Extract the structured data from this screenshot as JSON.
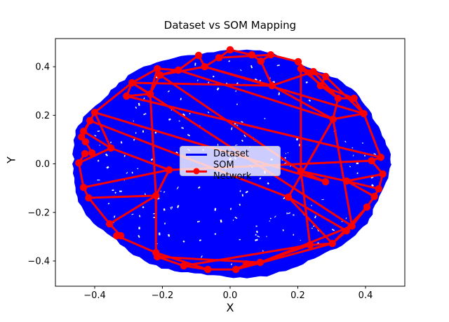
{
  "figure": {
    "background": "#ffffff"
  },
  "chart_data": {
    "type": "scatter",
    "title": "Dataset vs SOM Mapping",
    "xlabel": "X",
    "ylabel": "Y",
    "xlim": [
      -0.516,
      0.516
    ],
    "ylim": [
      -0.504,
      0.516
    ],
    "x_ticks": [
      -0.4,
      -0.2,
      0.0,
      0.2,
      0.4
    ],
    "y_ticks": [
      -0.4,
      -0.2,
      0.0,
      0.2,
      0.4
    ],
    "x_tick_labels": [
      "−0.4",
      "−0.2",
      "0.0",
      "0.2",
      "0.4"
    ],
    "y_tick_labels": [
      "−0.4",
      "−0.2",
      "0.0",
      "0.2",
      "0.4"
    ],
    "grid": false,
    "legend": {
      "position": "center",
      "entries": [
        {
          "label": "Dataset",
          "color": "#0000ff",
          "marker": "line"
        },
        {
          "label": "SOM Network",
          "color": "#ff0000",
          "marker": "line+circle"
        }
      ]
    },
    "series": [
      {
        "name": "Dataset",
        "kind": "dense_point_cloud",
        "color": "#0000ff",
        "shape": "disk",
        "center": [
          0.0,
          0.0
        ],
        "radius": 0.47,
        "description": "Thousands of random 2-D points uniformly filling a disk of radius ~0.47, drawn so densely they form a solid blue blob with tiny white gaps"
      },
      {
        "name": "SOM Network",
        "kind": "network",
        "color": "#ff0000",
        "marker": "circle",
        "nodes": [
          [
            0.0,
            0.47
          ],
          [
            0.064,
            0.449
          ],
          [
            0.12,
            0.449
          ],
          [
            0.091,
            0.423
          ],
          [
            0.201,
            0.421
          ],
          [
            0.209,
            0.392
          ],
          [
            0.246,
            0.38
          ],
          [
            0.282,
            0.36
          ],
          [
            0.267,
            0.322
          ],
          [
            0.124,
            0.322
          ],
          [
            0.366,
            0.27
          ],
          [
            0.319,
            0.27
          ],
          [
            0.395,
            0.207
          ],
          [
            0.304,
            0.184
          ],
          [
            0.445,
            0.027
          ],
          [
            0.418,
            0.013
          ],
          [
            0.451,
            -0.042
          ],
          [
            0.439,
            -0.103
          ],
          [
            0.426,
            -0.134
          ],
          [
            0.404,
            -0.178
          ],
          [
            0.36,
            -0.256
          ],
          [
            0.344,
            -0.276
          ],
          [
            0.302,
            -0.328
          ],
          [
            0.236,
            -0.334
          ],
          [
            0.089,
            -0.406
          ],
          [
            0.048,
            -0.412
          ],
          [
            0.017,
            -0.435
          ],
          [
            -0.066,
            -0.435
          ],
          [
            -0.137,
            -0.42
          ],
          [
            -0.215,
            -0.383
          ],
          [
            -0.219,
            -0.366
          ],
          [
            -0.335,
            -0.296
          ],
          [
            -0.323,
            -0.296
          ],
          [
            -0.356,
            -0.247
          ],
          [
            -0.418,
            -0.14
          ],
          [
            -0.433,
            -0.097
          ],
          [
            -0.447,
            0.004
          ],
          [
            -0.429,
            0.042
          ],
          [
            -0.408,
            0.045
          ],
          [
            -0.352,
            0.065
          ],
          [
            -0.439,
            0.111
          ],
          [
            -0.427,
            0.091
          ],
          [
            -0.433,
            0.134
          ],
          [
            -0.414,
            0.178
          ],
          [
            -0.4,
            0.212
          ],
          [
            -0.29,
            0.334
          ],
          [
            -0.306,
            0.279
          ],
          [
            -0.236,
            0.288
          ],
          [
            -0.215,
            0.392
          ],
          [
            -0.207,
            0.366
          ],
          [
            -0.153,
            0.386
          ],
          [
            -0.093,
            0.447
          ],
          [
            -0.075,
            0.4
          ],
          [
            -0.033,
            0.437
          ],
          [
            0.209,
            -0.03
          ],
          [
            0.282,
            -0.074
          ],
          [
            0.172,
            -0.137
          ],
          [
            -0.219,
            -0.131
          ],
          [
            -0.18,
            -0.025
          ],
          [
            0.344,
            -0.071
          ]
        ],
        "edges": [
          [
            0,
            1
          ],
          [
            1,
            3
          ],
          [
            3,
            2
          ],
          [
            2,
            4
          ],
          [
            4,
            5
          ],
          [
            5,
            6
          ],
          [
            6,
            7
          ],
          [
            7,
            8
          ],
          [
            8,
            10
          ],
          [
            10,
            12
          ],
          [
            12,
            14
          ],
          [
            14,
            15
          ],
          [
            15,
            16
          ],
          [
            16,
            17
          ],
          [
            17,
            18
          ],
          [
            18,
            19
          ],
          [
            19,
            20
          ],
          [
            20,
            21
          ],
          [
            21,
            22
          ],
          [
            22,
            23
          ],
          [
            23,
            24
          ],
          [
            24,
            25
          ],
          [
            25,
            26
          ],
          [
            26,
            27
          ],
          [
            27,
            28
          ],
          [
            28,
            29
          ],
          [
            29,
            30
          ],
          [
            30,
            31
          ],
          [
            31,
            32
          ],
          [
            32,
            33
          ],
          [
            33,
            34
          ],
          [
            34,
            35
          ],
          [
            35,
            36
          ],
          [
            36,
            37
          ],
          [
            37,
            38
          ],
          [
            38,
            41
          ],
          [
            41,
            40
          ],
          [
            40,
            42
          ],
          [
            42,
            43
          ],
          [
            43,
            44
          ],
          [
            44,
            45
          ],
          [
            45,
            46
          ],
          [
            46,
            47
          ],
          [
            47,
            48
          ],
          [
            48,
            49
          ],
          [
            49,
            50
          ],
          [
            50,
            51
          ],
          [
            51,
            52
          ],
          [
            52,
            53
          ],
          [
            53,
            0
          ],
          [
            45,
            20
          ],
          [
            46,
            14
          ],
          [
            44,
            55
          ],
          [
            43,
            56
          ],
          [
            49,
            54
          ],
          [
            47,
            57
          ],
          [
            57,
            30
          ],
          [
            54,
            23
          ],
          [
            54,
            5
          ],
          [
            54,
            55
          ],
          [
            59,
            16
          ],
          [
            56,
            22
          ],
          [
            13,
            56
          ],
          [
            9,
            13
          ],
          [
            9,
            6
          ],
          [
            11,
            13
          ],
          [
            11,
            8
          ],
          [
            50,
            13
          ],
          [
            52,
            12
          ],
          [
            58,
            15
          ],
          [
            58,
            57
          ],
          [
            39,
            58
          ],
          [
            39,
            44
          ],
          [
            36,
            39
          ],
          [
            33,
            57
          ],
          [
            35,
            58
          ],
          [
            29,
            24
          ],
          [
            28,
            23
          ],
          [
            22,
            19
          ],
          [
            20,
            13
          ],
          [
            17,
            59
          ],
          [
            45,
            9
          ],
          [
            48,
            45
          ],
          [
            53,
            2
          ],
          [
            3,
            9
          ],
          [
            52,
            9
          ],
          [
            5,
            11
          ],
          [
            7,
            12
          ],
          [
            4,
            8
          ],
          [
            6,
            11
          ],
          [
            24,
            20
          ],
          [
            26,
            22
          ],
          [
            27,
            30
          ],
          [
            34,
            57
          ],
          [
            42,
            39
          ],
          [
            40,
            44
          ],
          [
            49,
            47
          ],
          [
            49,
            52
          ],
          [
            48,
            50
          ],
          [
            18,
            59
          ],
          [
            45,
            47
          ],
          [
            12,
            13
          ],
          [
            10,
            11
          ],
          [
            21,
            56
          ],
          [
            54,
            59
          ]
        ]
      }
    ]
  }
}
